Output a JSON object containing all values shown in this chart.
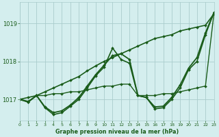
{
  "title": "Graphe pression niveau de la mer (hPa)",
  "bg_color": "#d4eeee",
  "line_color": "#1a5c1a",
  "grid_color": "#aacccc",
  "text_color": "#1a5c1a",
  "xlim": [
    0,
    23
  ],
  "ylim": [
    1016.45,
    1019.55
  ],
  "yticks": [
    1017,
    1018,
    1019
  ],
  "xticks": [
    0,
    1,
    2,
    3,
    4,
    5,
    6,
    7,
    8,
    9,
    10,
    11,
    12,
    13,
    14,
    15,
    16,
    17,
    18,
    19,
    20,
    21,
    22,
    23
  ],
  "series": [
    {
      "x": [
        0,
        1,
        2,
        3,
        4,
        5,
        6,
        7,
        8,
        9,
        10,
        11,
        12,
        13,
        14,
        15,
        16,
        17,
        18,
        19,
        20,
        21,
        22,
        23
      ],
      "y": [
        1017.0,
        1016.95,
        1017.1,
        1017.1,
        1017.15,
        1017.15,
        1017.2,
        1017.2,
        1017.25,
        1017.3,
        1017.35,
        1017.35,
        1017.4,
        1017.4,
        1017.1,
        1017.1,
        1017.1,
        1017.15,
        1017.15,
        1017.2,
        1017.25,
        1017.3,
        1017.35,
        1019.25
      ],
      "lw": 1.0
    },
    {
      "x": [
        0,
        1,
        2,
        3,
        4,
        5,
        6,
        7,
        8,
        9,
        10,
        11,
        12,
        13,
        14,
        15,
        16,
        17,
        18,
        19,
        20,
        21,
        22,
        23
      ],
      "y": [
        1017.0,
        1017.05,
        1017.1,
        1017.2,
        1017.3,
        1017.4,
        1017.5,
        1017.6,
        1017.75,
        1017.88,
        1018.0,
        1018.1,
        1018.2,
        1018.3,
        1018.4,
        1018.5,
        1018.6,
        1018.65,
        1018.7,
        1018.8,
        1018.85,
        1018.9,
        1018.95,
        1019.25
      ],
      "lw": 1.2
    },
    {
      "x": [
        0,
        1,
        2,
        3,
        4,
        5,
        6,
        7,
        8,
        9,
        10,
        11,
        12,
        13,
        14,
        15,
        16,
        17,
        18,
        19,
        20,
        21,
        22,
        23
      ],
      "y": [
        1017.0,
        1016.93,
        1017.1,
        1016.8,
        1016.65,
        1016.7,
        1016.85,
        1017.05,
        1017.35,
        1017.65,
        1017.9,
        1018.15,
        1018.2,
        1018.05,
        1017.1,
        1017.05,
        1016.8,
        1016.82,
        1017.05,
        1017.38,
        1017.82,
        1018.1,
        1018.75,
        1019.28
      ],
      "lw": 1.3
    },
    {
      "x": [
        0,
        1,
        2,
        3,
        4,
        5,
        6,
        7,
        8,
        9,
        10,
        11,
        12,
        13,
        14,
        15,
        16,
        17,
        18,
        19,
        20,
        21,
        22,
        23
      ],
      "y": [
        1017.0,
        1016.93,
        1017.1,
        1016.78,
        1016.6,
        1016.65,
        1016.82,
        1017.0,
        1017.3,
        1017.62,
        1017.85,
        1018.35,
        1018.05,
        1017.95,
        1017.1,
        1017.05,
        1016.75,
        1016.78,
        1017.0,
        1017.3,
        1017.78,
        1018.0,
        1018.7,
        1019.28
      ],
      "lw": 1.2
    }
  ]
}
